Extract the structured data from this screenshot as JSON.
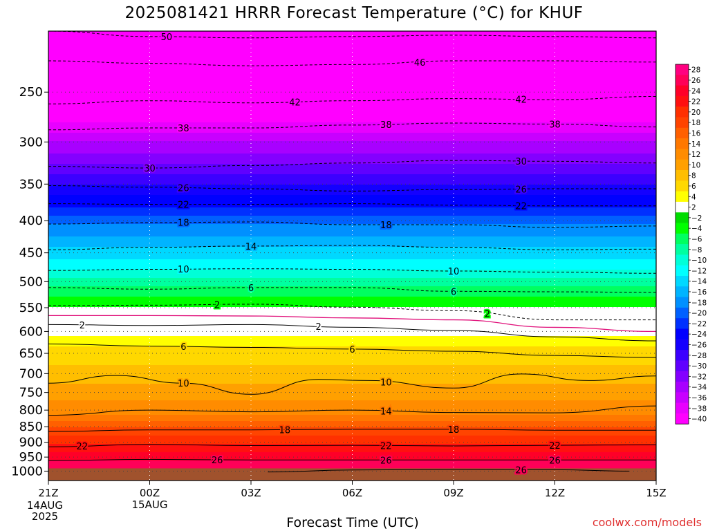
{
  "title": "2025081421 HRRR Forecast Temperature (°C) for KHUF",
  "watermark": "coolwx.com/models",
  "chart_data": {
    "type": "heatmap",
    "title": "2025081421 HRRR Forecast Temperature (°C) for KHUF",
    "xlabel": "Forecast Time (UTC)",
    "ylabel": "",
    "x_ticks": [
      {
        "hour": 0,
        "label": "21Z",
        "sub": [
          "14AUG",
          "2025"
        ]
      },
      {
        "hour": 3,
        "label": "00Z",
        "sub": [
          "15AUG"
        ]
      },
      {
        "hour": 6,
        "label": "03Z",
        "sub": []
      },
      {
        "hour": 9,
        "label": "06Z",
        "sub": []
      },
      {
        "hour": 12,
        "label": "09Z",
        "sub": []
      },
      {
        "hour": 15,
        "label": "12Z",
        "sub": []
      },
      {
        "hour": 18,
        "label": "15Z",
        "sub": []
      }
    ],
    "xlim_hours": [
      0,
      18
    ],
    "y_ticks": [
      250,
      300,
      350,
      400,
      450,
      500,
      550,
      600,
      650,
      700,
      750,
      800,
      850,
      900,
      950,
      1000
    ],
    "ylim_hpa": [
      200,
      1035
    ],
    "y_scale": "log",
    "surface_pressure_hpa": 990,
    "colorbar": {
      "labels": [
        28,
        26,
        24,
        22,
        20,
        18,
        16,
        14,
        12,
        10,
        8,
        6,
        4,
        2,
        -2,
        -4,
        -6,
        -8,
        -10,
        -12,
        -14,
        -16,
        -18,
        -20,
        -22,
        -24,
        -26,
        -28,
        -30,
        -32,
        -34,
        -36,
        -38,
        -40
      ],
      "colors": [
        "#ff0080",
        "#ff0058",
        "#ff0028",
        "#ff1010",
        "#ff3000",
        "#ff4400",
        "#ff6000",
        "#ff7800",
        "#ff8c00",
        "#ffa000",
        "#ffbe00",
        "#ffd800",
        "#ffff00",
        "#ffffff",
        "#00dc00",
        "#00ff00",
        "#00ff60",
        "#00ffa0",
        "#00ffd8",
        "#00ffff",
        "#00d8ff",
        "#00b4ff",
        "#0090ff",
        "#0060ff",
        "#0030ff",
        "#0000ff",
        "#1400ff",
        "#3c00ff",
        "#6000ff",
        "#8400ff",
        "#a800ff",
        "#c800ff",
        "#e800ff",
        "#ff00ff"
      ]
    },
    "profile": [
      {
        "p": 200,
        "t": -54
      },
      {
        "p": 250,
        "t": -44
      },
      {
        "p": 270,
        "t": -40
      },
      {
        "p": 300,
        "t": -34
      },
      {
        "p": 325,
        "t": -30
      },
      {
        "p": 350,
        "t": -26
      },
      {
        "p": 380,
        "t": -22
      },
      {
        "p": 405,
        "t": -18
      },
      {
        "p": 440,
        "t": -14
      },
      {
        "p": 480,
        "t": -10
      },
      {
        "p": 510,
        "t": -6
      },
      {
        "p": 548,
        "t": -2
      },
      {
        "p": 568,
        "t": 0
      },
      {
        "p": 590,
        "t": 2
      },
      {
        "p": 632,
        "t": 6
      },
      {
        "p": 725,
        "t": 10
      },
      {
        "p": 815,
        "t": 14
      },
      {
        "p": 855,
        "t": 18
      },
      {
        "p": 905,
        "t": 22
      },
      {
        "p": 960,
        "t": 26
      },
      {
        "p": 1000,
        "t": 27
      }
    ],
    "contours": [
      {
        "value": -50,
        "label": "50",
        "dashed": true,
        "pts": [
          [
            0,
            200
          ],
          [
            3,
            204
          ],
          [
            6,
            205
          ],
          [
            9,
            204
          ],
          [
            12,
            203
          ],
          [
            15,
            204
          ],
          [
            18,
            205
          ]
        ],
        "labels_at": [
          3.5
        ]
      },
      {
        "value": -46,
        "label": "46",
        "dashed": true,
        "pts": [
          [
            0,
            223
          ],
          [
            3,
            225
          ],
          [
            6,
            227
          ],
          [
            9,
            226
          ],
          [
            12,
            223
          ],
          [
            15,
            223
          ],
          [
            18,
            224
          ]
        ],
        "labels_at": [
          11
        ]
      },
      {
        "value": -42,
        "label": "42",
        "dashed": true,
        "pts": [
          [
            0,
            261
          ],
          [
            3,
            258
          ],
          [
            6,
            260
          ],
          [
            9,
            258
          ],
          [
            12,
            256
          ],
          [
            15,
            257
          ],
          [
            18,
            254
          ]
        ],
        "labels_at": [
          7.3,
          14
        ]
      },
      {
        "value": -38,
        "label": "38",
        "dashed": true,
        "pts": [
          [
            0,
            287
          ],
          [
            3,
            285
          ],
          [
            6,
            285
          ],
          [
            9,
            282
          ],
          [
            12,
            280
          ],
          [
            15,
            281
          ],
          [
            18,
            284
          ]
        ],
        "labels_at": [
          4,
          10,
          15
        ]
      },
      {
        "value": -30,
        "label": "30",
        "dashed": true,
        "pts": [
          [
            0,
            328
          ],
          [
            3,
            330
          ],
          [
            6,
            327
          ],
          [
            9,
            324
          ],
          [
            12,
            321
          ],
          [
            15,
            322
          ],
          [
            18,
            324
          ]
        ],
        "labels_at": [
          3,
          14
        ]
      },
      {
        "value": -26,
        "label": "26",
        "dashed": true,
        "pts": [
          [
            0,
            352
          ],
          [
            3,
            354
          ],
          [
            6,
            356
          ],
          [
            9,
            359
          ],
          [
            12,
            357
          ],
          [
            15,
            356
          ],
          [
            18,
            356
          ]
        ],
        "labels_at": [
          4,
          14
        ]
      },
      {
        "value": -22,
        "label": "22",
        "dashed": true,
        "pts": [
          [
            0,
            376
          ],
          [
            3,
            377
          ],
          [
            6,
            377
          ],
          [
            9,
            376
          ],
          [
            12,
            378
          ],
          [
            15,
            379
          ],
          [
            18,
            379
          ]
        ],
        "labels_at": [
          4,
          14
        ]
      },
      {
        "value": -18,
        "label": "18",
        "dashed": true,
        "pts": [
          [
            0,
            405
          ],
          [
            3,
            403
          ],
          [
            6,
            402
          ],
          [
            9,
            406
          ],
          [
            12,
            406
          ],
          [
            15,
            410
          ],
          [
            18,
            408
          ]
        ],
        "labels_at": [
          4,
          10
        ]
      },
      {
        "value": -14,
        "label": "14",
        "dashed": true,
        "pts": [
          [
            0,
            445
          ],
          [
            3,
            441
          ],
          [
            6,
            439
          ],
          [
            9,
            438
          ],
          [
            12,
            441
          ],
          [
            15,
            445
          ],
          [
            18,
            444
          ]
        ],
        "labels_at": [
          6
        ]
      },
      {
        "value": -10,
        "label": "10",
        "dashed": true,
        "pts": [
          [
            0,
            480
          ],
          [
            3,
            478
          ],
          [
            6,
            477
          ],
          [
            9,
            478
          ],
          [
            12,
            481
          ],
          [
            15,
            483
          ],
          [
            18,
            485
          ]
        ],
        "labels_at": [
          4,
          12
        ]
      },
      {
        "value": -6,
        "label": "6",
        "dashed": true,
        "pts": [
          [
            0,
            511
          ],
          [
            3,
            514
          ],
          [
            6,
            511
          ],
          [
            9,
            511
          ],
          [
            12,
            518
          ],
          [
            15,
            519
          ],
          [
            18,
            520
          ]
        ],
        "labels_at": [
          6,
          12
        ]
      },
      {
        "value": -2,
        "label": "2",
        "dashed": true,
        "pts": [
          [
            0,
            546
          ],
          [
            3,
            545
          ],
          [
            6,
            543
          ],
          [
            9,
            549
          ],
          [
            12,
            556
          ],
          [
            15,
            575
          ],
          [
            18,
            575
          ]
        ],
        "labels_at": [
          5,
          13
        ]
      },
      {
        "value": 0,
        "label": "",
        "dashed": false,
        "magenta": true,
        "pts": [
          [
            0,
            566
          ],
          [
            3,
            566
          ],
          [
            6,
            567
          ],
          [
            9,
            571
          ],
          [
            12,
            575
          ],
          [
            15,
            591
          ],
          [
            18,
            600
          ]
        ],
        "labels_at": []
      },
      {
        "value": 2,
        "label": "2",
        "dashed": false,
        "pts": [
          [
            0,
            585
          ],
          [
            3,
            587
          ],
          [
            6,
            585
          ],
          [
            9,
            591
          ],
          [
            12,
            598
          ],
          [
            15,
            612
          ],
          [
            18,
            621
          ]
        ],
        "labels_at": [
          1,
          8
        ]
      },
      {
        "value": 6,
        "label": "6",
        "dashed": false,
        "pts": [
          [
            0,
            628
          ],
          [
            3,
            633
          ],
          [
            6,
            636
          ],
          [
            9,
            640
          ],
          [
            12,
            645
          ],
          [
            15,
            655
          ],
          [
            18,
            660
          ]
        ],
        "labels_at": [
          4,
          9
        ]
      },
      {
        "value": 10,
        "label": "10",
        "dashed": false,
        "pts": [
          [
            0,
            725
          ],
          [
            2,
            705
          ],
          [
            4,
            725
          ],
          [
            6,
            755
          ],
          [
            8,
            715
          ],
          [
            9.5,
            718
          ],
          [
            12,
            738
          ],
          [
            14,
            701
          ],
          [
            16,
            718
          ],
          [
            18,
            706
          ]
        ],
        "labels_at": [
          4,
          10
        ]
      },
      {
        "value": 14,
        "label": "14",
        "dashed": false,
        "pts": [
          [
            0,
            815
          ],
          [
            3,
            800
          ],
          [
            6,
            805
          ],
          [
            9,
            800
          ],
          [
            12,
            807
          ],
          [
            15,
            808
          ],
          [
            18,
            788
          ]
        ],
        "labels_at": [
          10
        ]
      },
      {
        "value": 18,
        "label": "18",
        "dashed": false,
        "pts": [
          [
            0,
            865
          ],
          [
            3,
            860
          ],
          [
            6,
            860
          ],
          [
            9,
            858
          ],
          [
            12,
            858
          ],
          [
            15,
            861
          ],
          [
            18,
            861
          ]
        ],
        "labels_at": [
          7,
          12
        ]
      },
      {
        "value": 22,
        "label": "22",
        "dashed": false,
        "pts": [
          [
            0,
            915
          ],
          [
            3,
            907
          ],
          [
            6,
            911
          ],
          [
            9,
            910
          ],
          [
            12,
            912
          ],
          [
            15,
            910
          ],
          [
            18,
            908
          ]
        ],
        "labels_at": [
          1,
          10,
          15
        ]
      },
      {
        "value": 26,
        "label": "26",
        "dashed": false,
        "pts": [
          [
            0,
            962
          ],
          [
            3,
            958
          ],
          [
            6,
            960
          ],
          [
            9,
            960
          ],
          [
            12,
            960
          ],
          [
            15,
            960
          ],
          [
            18,
            960
          ]
        ],
        "labels_at": [
          5,
          10,
          15
        ]
      },
      {
        "value": 26,
        "label": "26",
        "dashed": false,
        "pts": [
          [
            6.5,
            1003
          ],
          [
            9,
            996
          ],
          [
            12,
            994
          ],
          [
            15,
            995
          ],
          [
            17.2,
            1000
          ]
        ],
        "labels_at": [
          14
        ]
      }
    ]
  }
}
